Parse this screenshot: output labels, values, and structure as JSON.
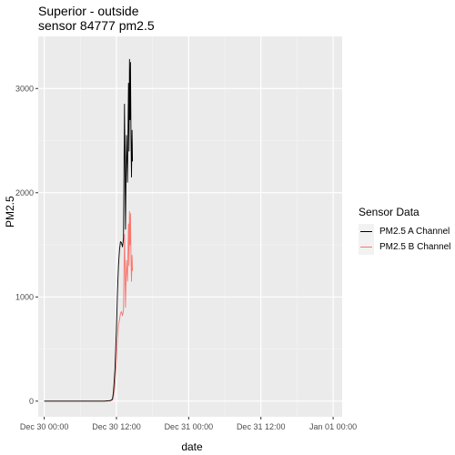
{
  "chart_data": {
    "type": "line",
    "title": "Superior - outside",
    "subtitle": "sensor 84777 pm2.5",
    "xlabel": "date",
    "ylabel": "PM2.5",
    "x_ticks": [
      "Dec 30 00:00",
      "Dec 30 12:00",
      "Dec 31 00:00",
      "Dec 31 12:00",
      "Jan 01 00:00"
    ],
    "y_ticks": [
      0,
      1000,
      2000,
      3000
    ],
    "xlim": [
      "Dec 29 23:00",
      "Jan 01 01:30"
    ],
    "ylim": [
      -150,
      3500
    ],
    "grid": true,
    "legend": {
      "title": "Sensor Data",
      "position": "right"
    },
    "series": [
      {
        "name": "PM2.5 A Channel",
        "color": "#000000",
        "x": [
          "Dec 30 00:00",
          "Dec 30 02:00",
          "Dec 30 04:00",
          "Dec 30 06:00",
          "Dec 30 08:00",
          "Dec 30 10:00",
          "Dec 30 11:00",
          "Dec 30 11:20",
          "Dec 30 11:30",
          "Dec 30 11:45",
          "Dec 30 12:00",
          "Dec 30 12:10",
          "Dec 30 12:20",
          "Dec 30 12:30",
          "Dec 30 12:40",
          "Dec 30 12:50",
          "Dec 30 13:00",
          "Dec 30 13:10",
          "Dec 30 13:20",
          "Dec 30 13:30",
          "Dec 30 13:40",
          "Dec 30 13:50",
          "Dec 30 14:00",
          "Dec 30 14:05",
          "Dec 30 14:10",
          "Dec 30 14:15",
          "Dec 30 14:20",
          "Dec 30 14:25",
          "Dec 30 14:30",
          "Dec 30 14:35",
          "Dec 30 14:40"
        ],
        "y": [
          0,
          0,
          0,
          0,
          0,
          0,
          5,
          20,
          90,
          300,
          700,
          1050,
          1300,
          1450,
          1530,
          1520,
          1480,
          1560,
          2850,
          1650,
          2550,
          2100,
          3050,
          2400,
          3280,
          2700,
          3250,
          2500,
          2150,
          2600,
          2300
        ]
      },
      {
        "name": "PM2.5 B Channel",
        "color": "#f8766d",
        "x": [
          "Dec 30 00:00",
          "Dec 30 02:00",
          "Dec 30 04:00",
          "Dec 30 06:00",
          "Dec 30 08:00",
          "Dec 30 10:00",
          "Dec 30 11:00",
          "Dec 30 11:20",
          "Dec 30 11:30",
          "Dec 30 11:45",
          "Dec 30 12:00",
          "Dec 30 12:10",
          "Dec 30 12:20",
          "Dec 30 12:30",
          "Dec 30 12:40",
          "Dec 30 12:50",
          "Dec 30 13:00",
          "Dec 30 13:10",
          "Dec 30 13:20",
          "Dec 30 13:30",
          "Dec 30 13:40",
          "Dec 30 13:50",
          "Dec 30 14:00",
          "Dec 30 14:05",
          "Dec 30 14:10",
          "Dec 30 14:15",
          "Dec 30 14:20",
          "Dec 30 14:25",
          "Dec 30 14:30",
          "Dec 30 14:35",
          "Dec 30 14:40"
        ],
        "y": [
          0,
          0,
          0,
          0,
          0,
          0,
          3,
          10,
          50,
          150,
          400,
          600,
          730,
          780,
          840,
          860,
          820,
          870,
          1600,
          900,
          1350,
          1150,
          1700,
          1300,
          1820,
          1500,
          1800,
          1350,
          1150,
          1400,
          1250
        ]
      }
    ]
  }
}
